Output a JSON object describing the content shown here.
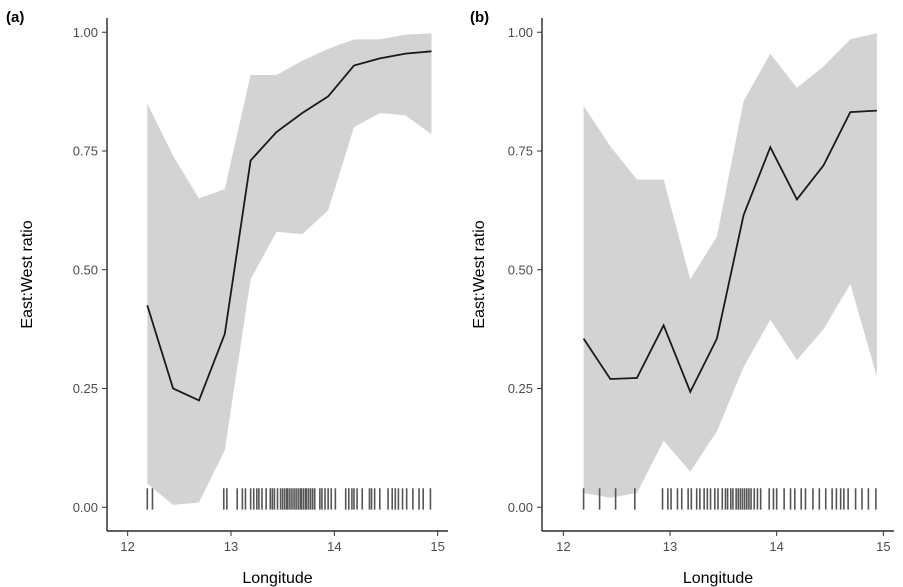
{
  "chart_data": [
    {
      "type": "line",
      "panel_label": "(a)",
      "xlabel": "Longitude",
      "ylabel": "East:West ratio",
      "xlim": [
        11.8,
        15.1
      ],
      "ylim": [
        -0.05,
        1.03
      ],
      "xticks": [
        12,
        13,
        14,
        15
      ],
      "yticks": [
        0.0,
        0.25,
        0.5,
        0.75,
        1.0
      ],
      "xtick_labels": [
        "12",
        "13",
        "14",
        "15"
      ],
      "ytick_labels": [
        "0.00",
        "0.25",
        "0.50",
        "0.75",
        "1.00"
      ],
      "grid": false,
      "line_color": "#1a1a1a",
      "band_color": "#d3d3d3",
      "rug_color": "#555555",
      "line": {
        "x": [
          12.19,
          12.44,
          12.69,
          12.94,
          13.19,
          13.44,
          13.69,
          13.94,
          14.19,
          14.44,
          14.69,
          14.94
        ],
        "y": [
          0.425,
          0.25,
          0.225,
          0.365,
          0.73,
          0.79,
          0.83,
          0.865,
          0.93,
          0.945,
          0.955,
          0.96
        ]
      },
      "ci_upper": [
        0.85,
        0.74,
        0.65,
        0.67,
        0.91,
        0.91,
        0.94,
        0.965,
        0.985,
        0.985,
        0.995,
        0.998
      ],
      "ci_lower": [
        0.05,
        0.005,
        0.01,
        0.12,
        0.48,
        0.58,
        0.575,
        0.625,
        0.8,
        0.83,
        0.825,
        0.785
      ],
      "rug_x": [
        12.19,
        12.24,
        12.93,
        12.96,
        13.06,
        13.11,
        13.14,
        13.19,
        13.22,
        13.25,
        13.27,
        13.3,
        13.34,
        13.38,
        13.4,
        13.42,
        13.45,
        13.48,
        13.5,
        13.52,
        13.54,
        13.55,
        13.57,
        13.59,
        13.61,
        13.63,
        13.65,
        13.67,
        13.68,
        13.7,
        13.72,
        13.73,
        13.75,
        13.77,
        13.79,
        13.81,
        13.86,
        13.88,
        13.91,
        13.94,
        13.97,
        14.01,
        14.11,
        14.14,
        14.17,
        14.19,
        14.22,
        14.27,
        14.34,
        14.36,
        14.39,
        14.44,
        14.52,
        14.56,
        14.59,
        14.62,
        14.66,
        14.7,
        14.76,
        14.82,
        14.86,
        14.93
      ]
    },
    {
      "type": "line",
      "panel_label": "(b)",
      "xlabel": "Longitude",
      "ylabel": "East:West ratio",
      "xlim": [
        11.8,
        15.1
      ],
      "ylim": [
        -0.05,
        1.03
      ],
      "xticks": [
        12,
        13,
        14,
        15
      ],
      "yticks": [
        0.0,
        0.25,
        0.5,
        0.75,
        1.0
      ],
      "xtick_labels": [
        "12",
        "13",
        "14",
        "15"
      ],
      "ytick_labels": [
        "0.00",
        "0.25",
        "0.50",
        "0.75",
        "1.00"
      ],
      "grid": false,
      "line_color": "#1a1a1a",
      "band_color": "#d3d3d3",
      "rug_color": "#555555",
      "line": {
        "x": [
          12.19,
          12.44,
          12.69,
          12.94,
          13.19,
          13.44,
          13.69,
          13.94,
          14.19,
          14.44,
          14.69,
          14.94
        ],
        "y": [
          0.355,
          0.27,
          0.272,
          0.383,
          0.243,
          0.355,
          0.615,
          0.758,
          0.648,
          0.72,
          0.832,
          0.835
        ]
      },
      "ci_upper": [
        0.845,
        0.76,
        0.69,
        0.69,
        0.48,
        0.57,
        0.855,
        0.955,
        0.883,
        0.928,
        0.985,
        0.998
      ],
      "ci_lower": [
        0.03,
        0.02,
        0.03,
        0.14,
        0.075,
        0.16,
        0.295,
        0.395,
        0.31,
        0.375,
        0.47,
        0.275
      ],
      "rug_x": [
        12.19,
        12.34,
        12.49,
        12.67,
        12.93,
        12.98,
        13.01,
        13.07,
        13.11,
        13.17,
        13.2,
        13.25,
        13.28,
        13.32,
        13.35,
        13.38,
        13.42,
        13.45,
        13.49,
        13.52,
        13.54,
        13.57,
        13.59,
        13.62,
        13.64,
        13.66,
        13.68,
        13.7,
        13.72,
        13.74,
        13.76,
        13.79,
        13.82,
        13.85,
        13.93,
        13.97,
        14.0,
        14.07,
        14.13,
        14.17,
        14.23,
        14.27,
        14.34,
        14.4,
        14.46,
        14.52,
        14.56,
        14.6,
        14.63,
        14.67,
        14.74,
        14.8,
        14.86,
        14.93
      ]
    }
  ]
}
